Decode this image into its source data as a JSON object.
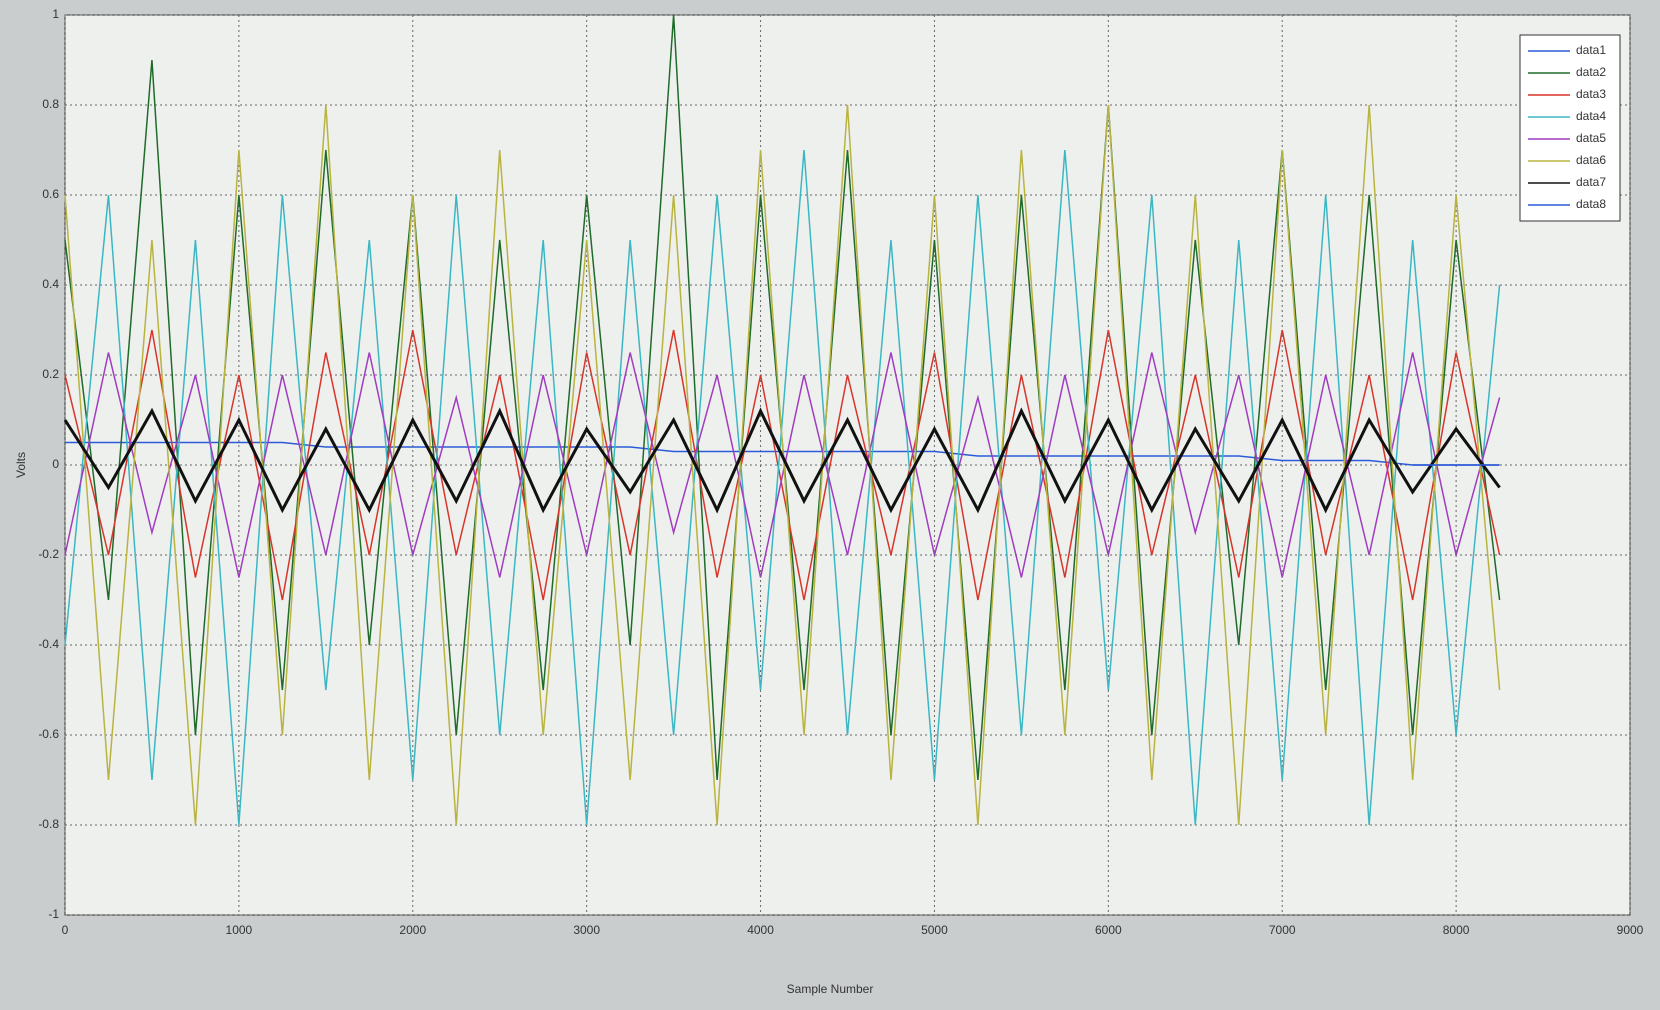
{
  "chart_data": {
    "type": "line",
    "xlabel": "Sample Number",
    "ylabel": "Volts",
    "x": [
      0,
      250,
      500,
      750,
      1000,
      1250,
      1500,
      1750,
      2000,
      2250,
      2500,
      2750,
      3000,
      3250,
      3500,
      3750,
      4000,
      4250,
      4500,
      4750,
      5000,
      5250,
      5500,
      5750,
      6000,
      6250,
      6500,
      6750,
      7000,
      7250,
      7500,
      7750,
      8000,
      8250
    ],
    "xlim": [
      0,
      9000
    ],
    "xticks": [
      0,
      1000,
      2000,
      3000,
      4000,
      5000,
      6000,
      7000,
      8000,
      9000
    ],
    "ylim": [
      -1,
      1
    ],
    "yticks": [
      -1,
      -0.8,
      -0.6,
      -0.4,
      -0.2,
      0,
      0.2,
      0.4,
      0.6,
      0.8,
      1
    ],
    "grid": true,
    "legend": "northeast",
    "series": [
      {
        "name": "data1",
        "color": "#2b5bd8",
        "values": [
          0.05,
          0.05,
          0.05,
          0.05,
          0.05,
          0.05,
          0.04,
          0.04,
          0.04,
          0.04,
          0.04,
          0.04,
          0.04,
          0.04,
          0.03,
          0.03,
          0.03,
          0.03,
          0.03,
          0.03,
          0.03,
          0.02,
          0.02,
          0.02,
          0.02,
          0.02,
          0.02,
          0.02,
          0.01,
          0.01,
          0.01,
          0,
          0,
          0
        ]
      },
      {
        "name": "data2",
        "color": "#1f6b2a",
        "values": [
          0.5,
          -0.3,
          0.9,
          -0.6,
          0.6,
          -0.5,
          0.7,
          -0.4,
          0.6,
          -0.6,
          0.5,
          -0.5,
          0.6,
          -0.4,
          1.0,
          -0.7,
          0.6,
          -0.5,
          0.7,
          -0.6,
          0.5,
          -0.7,
          0.6,
          -0.5,
          0.8,
          -0.6,
          0.5,
          -0.4,
          0.7,
          -0.5,
          0.6,
          -0.6,
          0.5,
          -0.3
        ]
      },
      {
        "name": "data3",
        "color": "#d8352a",
        "values": [
          0.2,
          -0.2,
          0.3,
          -0.25,
          0.2,
          -0.3,
          0.25,
          -0.2,
          0.3,
          -0.2,
          0.2,
          -0.3,
          0.25,
          -0.2,
          0.3,
          -0.25,
          0.2,
          -0.3,
          0.2,
          -0.2,
          0.25,
          -0.3,
          0.2,
          -0.25,
          0.3,
          -0.2,
          0.2,
          -0.25,
          0.3,
          -0.2,
          0.2,
          -0.3,
          0.25,
          -0.2
        ]
      },
      {
        "name": "data4",
        "color": "#3bb7c4",
        "values": [
          -0.4,
          0.6,
          -0.7,
          0.5,
          -0.8,
          0.6,
          -0.5,
          0.5,
          -0.7,
          0.6,
          -0.6,
          0.5,
          -0.8,
          0.5,
          -0.6,
          0.6,
          -0.5,
          0.7,
          -0.6,
          0.5,
          -0.7,
          0.6,
          -0.6,
          0.7,
          -0.5,
          0.6,
          -0.8,
          0.5,
          -0.7,
          0.6,
          -0.8,
          0.5,
          -0.6,
          0.4
        ]
      },
      {
        "name": "data5",
        "color": "#a03cc0",
        "values": [
          -0.2,
          0.25,
          -0.15,
          0.2,
          -0.25,
          0.2,
          -0.2,
          0.25,
          -0.2,
          0.15,
          -0.25,
          0.2,
          -0.2,
          0.25,
          -0.15,
          0.2,
          -0.25,
          0.2,
          -0.2,
          0.25,
          -0.2,
          0.15,
          -0.25,
          0.2,
          -0.2,
          0.25,
          -0.15,
          0.2,
          -0.25,
          0.2,
          -0.2,
          0.25,
          -0.2,
          0.15
        ]
      },
      {
        "name": "data6",
        "color": "#b9b340",
        "values": [
          0.6,
          -0.7,
          0.5,
          -0.8,
          0.7,
          -0.6,
          0.8,
          -0.7,
          0.6,
          -0.8,
          0.7,
          -0.6,
          0.5,
          -0.7,
          0.6,
          -0.8,
          0.7,
          -0.6,
          0.8,
          -0.7,
          0.6,
          -0.8,
          0.7,
          -0.6,
          0.8,
          -0.7,
          0.6,
          -0.8,
          0.7,
          -0.6,
          0.8,
          -0.7,
          0.6,
          -0.5
        ]
      },
      {
        "name": "data7",
        "color": "#111111",
        "values": [
          0.1,
          -0.05,
          0.12,
          -0.08,
          0.1,
          -0.1,
          0.08,
          -0.1,
          0.1,
          -0.08,
          0.12,
          -0.1,
          0.08,
          -0.06,
          0.1,
          -0.1,
          0.12,
          -0.08,
          0.1,
          -0.1,
          0.08,
          -0.1,
          0.12,
          -0.08,
          0.1,
          -0.1,
          0.08,
          -0.08,
          0.1,
          -0.1,
          0.1,
          -0.06,
          0.08,
          -0.05
        ]
      },
      {
        "name": "data8",
        "color": "#2b5bd8",
        "values": [
          null,
          null,
          null,
          null,
          null,
          null,
          null,
          null,
          null,
          null,
          null,
          null,
          null,
          null,
          null,
          null,
          null,
          null,
          null,
          null,
          null,
          null,
          null,
          null,
          null,
          null,
          null,
          null,
          null,
          null,
          null,
          0,
          0,
          0
        ]
      }
    ]
  }
}
